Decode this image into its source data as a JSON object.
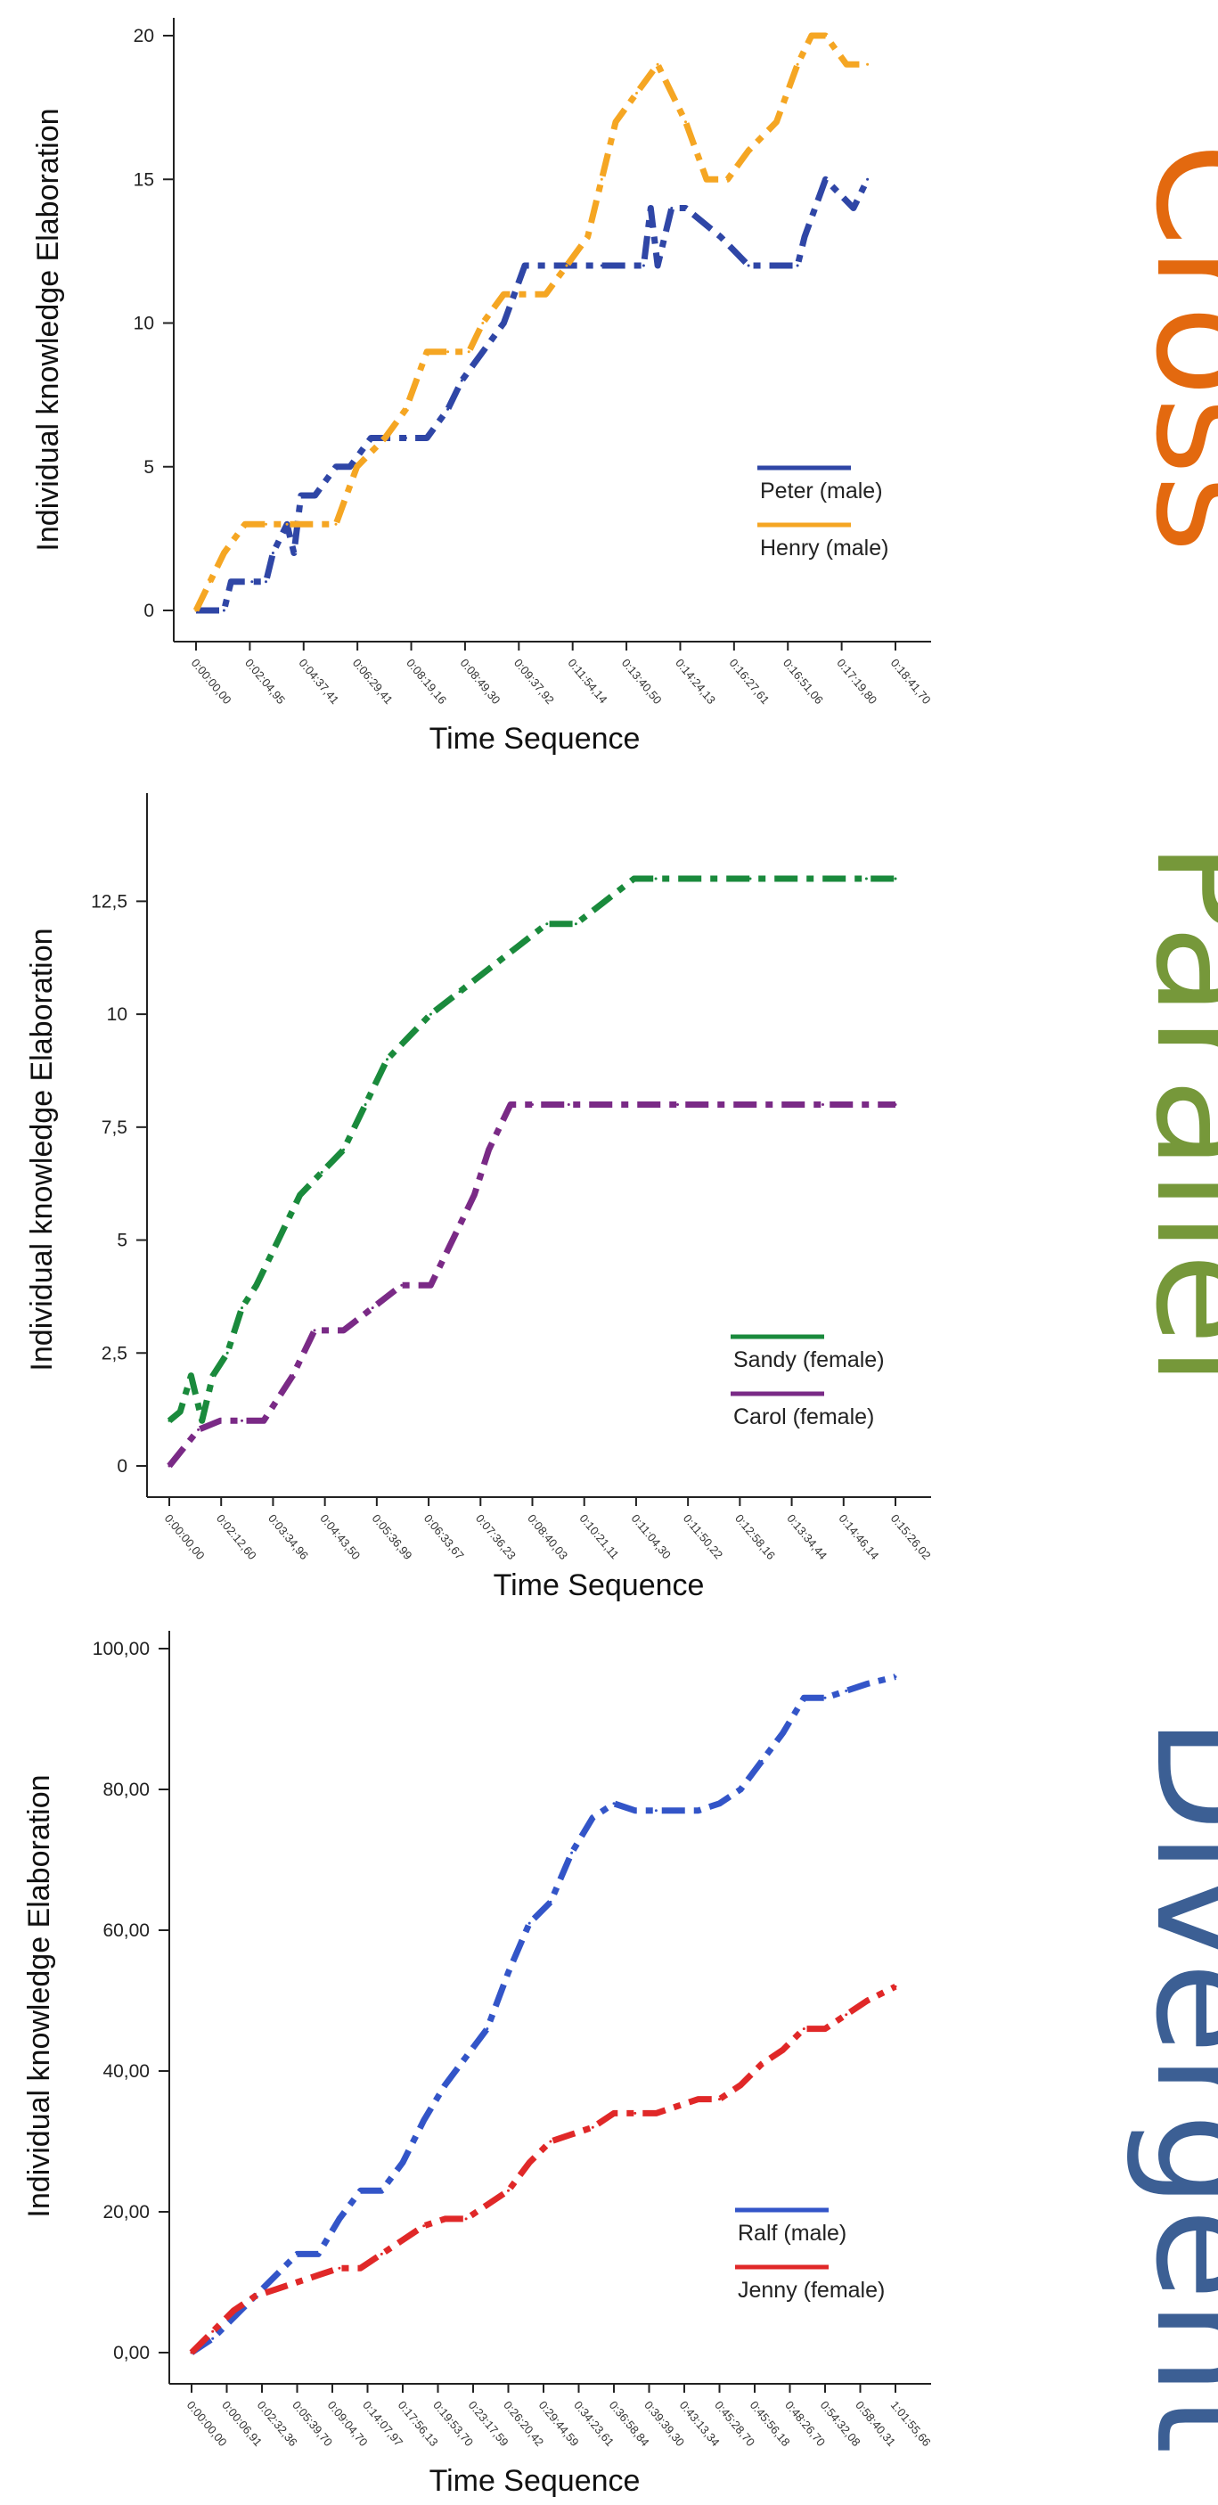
{
  "pattern_labels": {
    "cross": "Cross",
    "parallel": "Parallel",
    "divergent": "Divergent"
  },
  "colors": {
    "cross": "#E3690F",
    "parallel": "#76983A",
    "divergent": "#3C5F94",
    "peter": "#2F46A6",
    "henry": "#F5A623",
    "sandy": "#1A8A3C",
    "carol": "#7A2A86",
    "ralf": "#3355C8",
    "jenny": "#E02828"
  },
  "chart_data": [
    {
      "type": "line",
      "title": "",
      "xlabel": "Time Sequence",
      "ylabel": "Individual  knowledge Elaboration",
      "ylim": [
        0,
        20
      ],
      "yticks": [
        "0",
        "5",
        "10",
        "15",
        "20"
      ],
      "ytick_values": [
        0,
        5,
        10,
        15,
        20
      ],
      "x_range": [
        0,
        1
      ],
      "xticks": [
        "0:00:00,00",
        "0:02:04,95",
        "0:04:37,41",
        "0:06:29,41",
        "0:08:19,16",
        "0:08:49,30",
        "0:09:37,92",
        "0:11:54,14",
        "0:13:40,50",
        "0:14:24,13",
        "0:16:27,61",
        "0:16:51,06",
        "0:17:19,80",
        "0:18:41,70"
      ],
      "legend_position": "bottom-right",
      "series": [
        {
          "name": "Peter (male)",
          "x": [
            0.0,
            0.04,
            0.05,
            0.08,
            0.1,
            0.11,
            0.13,
            0.14,
            0.15,
            0.17,
            0.2,
            0.22,
            0.25,
            0.3,
            0.33,
            0.36,
            0.38,
            0.41,
            0.44,
            0.47,
            0.52,
            0.58,
            0.64,
            0.65,
            0.66,
            0.68,
            0.7,
            0.75,
            0.79,
            0.83,
            0.86,
            0.87,
            0.9,
            0.94,
            0.96
          ],
          "y": [
            0,
            0,
            1,
            1,
            1,
            2,
            3,
            2,
            4,
            4,
            5,
            5,
            6,
            6,
            6,
            7,
            8,
            9,
            10,
            12,
            12,
            12,
            12,
            14,
            12,
            14,
            14,
            13,
            12,
            12,
            12,
            13,
            15,
            14,
            15
          ]
        },
        {
          "name": "Henry (male)",
          "x": [
            0.0,
            0.02,
            0.04,
            0.07,
            0.1,
            0.13,
            0.16,
            0.2,
            0.23,
            0.27,
            0.3,
            0.33,
            0.36,
            0.39,
            0.41,
            0.44,
            0.47,
            0.5,
            0.53,
            0.56,
            0.58,
            0.6,
            0.63,
            0.66,
            0.7,
            0.73,
            0.76,
            0.79,
            0.83,
            0.86,
            0.88,
            0.9,
            0.93,
            0.96
          ],
          "y": [
            0,
            1,
            2,
            3,
            3,
            3,
            3,
            3,
            5,
            6,
            7,
            9,
            9,
            9,
            10,
            11,
            11,
            11,
            12,
            13,
            15,
            17,
            18,
            19,
            17,
            15,
            15,
            16,
            17,
            19,
            20,
            20,
            19,
            19
          ]
        }
      ]
    },
    {
      "type": "line",
      "title": "",
      "xlabel": "Time Sequence",
      "ylabel": "Individual  knowledge Elaboration",
      "ylim": [
        0,
        14.5
      ],
      "yticks": [
        "0",
        "2,5",
        "5",
        "7,5",
        "10",
        "12,5"
      ],
      "ytick_values": [
        0,
        2.5,
        5,
        7.5,
        10,
        12.5
      ],
      "x_range": [
        0,
        1
      ],
      "xticks": [
        "0:00:00,00",
        "0:02:12,60",
        "0:03:34,96",
        "0:04:43,50",
        "0:05:36,99",
        "0:06:33,67",
        "0:07:36,23",
        "0:08:40,03",
        "0:10:21,11",
        "0:11:04,30",
        "0:11:50,22",
        "0:12:58,16",
        "0:13:34,44",
        "0:14:46,14",
        "0:15:26,02"
      ],
      "legend_position": "bottom-right",
      "series": [
        {
          "name": "Sandy (female)",
          "x": [
            0.0,
            0.015,
            0.03,
            0.045,
            0.06,
            0.08,
            0.1,
            0.12,
            0.15,
            0.18,
            0.21,
            0.24,
            0.27,
            0.3,
            0.33,
            0.36,
            0.4,
            0.44,
            0.48,
            0.52,
            0.56,
            0.6,
            0.64,
            0.67,
            0.72,
            0.8,
            0.88,
            0.96,
            1.0
          ],
          "y": [
            1,
            1.2,
            2,
            1,
            2,
            2.5,
            3.5,
            4,
            5,
            6,
            6.5,
            7,
            8,
            9,
            9.5,
            10,
            10.5,
            11,
            11.5,
            12,
            12,
            12.5,
            13,
            13,
            13,
            13,
            13,
            13,
            13
          ]
        },
        {
          "name": "Carol (female)",
          "x": [
            0.0,
            0.04,
            0.07,
            0.1,
            0.13,
            0.17,
            0.2,
            0.24,
            0.28,
            0.32,
            0.36,
            0.39,
            0.42,
            0.44,
            0.47,
            0.5,
            0.55,
            0.6,
            0.7,
            0.8,
            0.9,
            1.0
          ],
          "y": [
            0,
            0.8,
            1,
            1,
            1,
            2,
            3,
            3,
            3.5,
            4,
            4,
            5,
            6,
            7,
            8,
            8,
            8,
            8,
            8,
            8,
            8,
            8
          ]
        }
      ]
    },
    {
      "type": "line",
      "title": "",
      "xlabel": "Time Sequence",
      "ylabel": "Individual  knowledge Elaboration",
      "ylim": [
        0,
        100
      ],
      "yticks": [
        "0,00",
        "20,00",
        "40,00",
        "60,00",
        "80,00",
        "100,00"
      ],
      "ytick_values": [
        0,
        20,
        40,
        60,
        80,
        100
      ],
      "x_range": [
        0,
        1
      ],
      "xticks": [
        "0:00:00,00",
        "0:00:06,91",
        "0:02:32,36",
        "0:05:39,70",
        "0:09:04,70",
        "0:14:07,97",
        "0:17:56,13",
        "0:19:53,70",
        "0:23:17,59",
        "0:26:20,42",
        "0:29:44,59",
        "0:34:23,61",
        "0:36:58,84",
        "0:39:39,30",
        "0:43:13,34",
        "0:45:28,70",
        "0:45:56,18",
        "0:48:26,70",
        "0:54:32,08",
        "0:58:40,31",
        "1:01:55,66"
      ],
      "legend_position": "bottom-right",
      "series": [
        {
          "name": "Ralf (male)",
          "x": [
            0.0,
            0.03,
            0.06,
            0.09,
            0.12,
            0.15,
            0.18,
            0.21,
            0.24,
            0.27,
            0.3,
            0.33,
            0.36,
            0.39,
            0.42,
            0.45,
            0.48,
            0.51,
            0.54,
            0.57,
            0.6,
            0.63,
            0.66,
            0.69,
            0.72,
            0.75,
            0.78,
            0.81,
            0.84,
            0.87,
            0.9,
            0.93,
            0.96,
            1.0
          ],
          "y": [
            0,
            2,
            5,
            8,
            11,
            14,
            14,
            19,
            23,
            23,
            27,
            33,
            38,
            42,
            46,
            54,
            61,
            64,
            71,
            76,
            78,
            77,
            77,
            77,
            77,
            78,
            80,
            84,
            88,
            93,
            93,
            94,
            95,
            96
          ]
        },
        {
          "name": "Jenny (female)",
          "x": [
            0.0,
            0.03,
            0.06,
            0.09,
            0.12,
            0.15,
            0.18,
            0.21,
            0.24,
            0.27,
            0.3,
            0.33,
            0.36,
            0.39,
            0.42,
            0.45,
            0.48,
            0.51,
            0.54,
            0.57,
            0.6,
            0.63,
            0.66,
            0.69,
            0.72,
            0.75,
            0.78,
            0.81,
            0.84,
            0.87,
            0.9,
            0.93,
            0.96,
            1.0
          ],
          "y": [
            0,
            3,
            6,
            8,
            9,
            10,
            11,
            12,
            12,
            14,
            16,
            18,
            19,
            19,
            21,
            23,
            27,
            30,
            31,
            32,
            34,
            34,
            34,
            35,
            36,
            36,
            38,
            41,
            43,
            46,
            46,
            48,
            50,
            52
          ]
        }
      ]
    }
  ]
}
